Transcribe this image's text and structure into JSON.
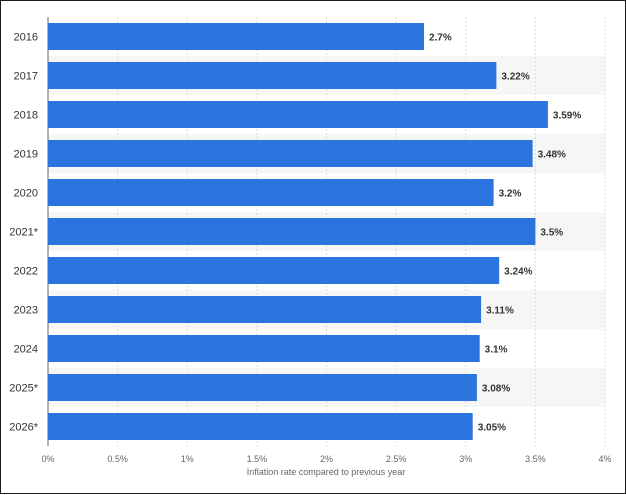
{
  "chart_data": {
    "type": "bar",
    "orientation": "horizontal",
    "categories": [
      "2016",
      "2017",
      "2018",
      "2019",
      "2020",
      "2021*",
      "2022",
      "2023",
      "2024",
      "2025*",
      "2026*"
    ],
    "values": [
      2.7,
      3.22,
      3.59,
      3.48,
      3.2,
      3.5,
      3.24,
      3.11,
      3.1,
      3.08,
      3.05
    ],
    "data_labels": [
      "2.7%",
      "3.22%",
      "3.59%",
      "3.48%",
      "3.2%",
      "3.5%",
      "3.24%",
      "3.11%",
      "3.1%",
      "3.08%",
      "3.05%"
    ],
    "xlabel": "Inflation rate compared to previous year",
    "ylabel": "",
    "xlim": [
      0,
      4
    ],
    "x_ticks": [
      0,
      0.5,
      1,
      1.5,
      2,
      2.5,
      3,
      3.5,
      4
    ],
    "x_tick_labels": [
      "0%",
      "0.5%",
      "1%",
      "1.5%",
      "2%",
      "2.5%",
      "3%",
      "3.5%",
      "4%"
    ],
    "grid": true,
    "alternating_row_shading": true,
    "bar_color": "#2b74dd",
    "label_color": "#333333"
  }
}
